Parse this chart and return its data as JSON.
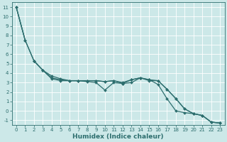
{
  "xlabel": "Humidex (Indice chaleur)",
  "bg_color": "#cce8e8",
  "grid_color": "#ffffff",
  "line_color": "#2d6e6e",
  "xlim": [
    -0.5,
    23.5
  ],
  "ylim": [
    -1.5,
    11.5
  ],
  "xticks": [
    0,
    1,
    2,
    3,
    4,
    5,
    6,
    7,
    8,
    9,
    10,
    11,
    12,
    13,
    14,
    15,
    16,
    17,
    18,
    19,
    20,
    21,
    22,
    23
  ],
  "yticks": [
    -1,
    0,
    1,
    2,
    3,
    4,
    5,
    6,
    7,
    8,
    9,
    10,
    11
  ],
  "series": [
    {
      "x": [
        0,
        1
      ],
      "y": [
        11.0,
        7.5
      ],
      "marker": false
    },
    {
      "x": [
        2,
        3,
        4,
        5,
        6,
        7,
        8,
        9,
        10,
        11,
        12,
        13,
        14,
        15,
        16,
        17,
        18,
        19,
        20,
        21,
        22,
        23
      ],
      "y": [
        5.3,
        4.3,
        3.5,
        3.3,
        3.2,
        3.2,
        3.2,
        3.2,
        3.1,
        3.2,
        3.0,
        3.3,
        3.5,
        3.3,
        3.2,
        2.3,
        1.3,
        0.2,
        -0.3,
        -0.5,
        -1.2,
        -1.3
      ],
      "marker": true
    },
    {
      "x": [
        0,
        1,
        2,
        3,
        4,
        5,
        6,
        7,
        8,
        9,
        10,
        11,
        12,
        13,
        14,
        15,
        16,
        17,
        18,
        19,
        20,
        21,
        22,
        23
      ],
      "y": [
        11.0,
        7.5,
        5.3,
        4.3,
        3.7,
        3.4,
        3.2,
        3.2,
        3.2,
        3.2,
        3.1,
        3.2,
        2.9,
        3.3,
        3.5,
        3.3,
        2.8,
        1.3,
        0.0,
        -0.2,
        -0.3,
        -0.5,
        -1.2,
        -1.3
      ],
      "marker": true
    },
    {
      "x": [
        0,
        1,
        2,
        3,
        4,
        5,
        6,
        7,
        8,
        9,
        10,
        11,
        12,
        13,
        14,
        15,
        16,
        17,
        18,
        19,
        20,
        21,
        22,
        23
      ],
      "y": [
        11.0,
        7.5,
        5.3,
        4.3,
        3.4,
        3.2,
        3.2,
        3.2,
        3.1,
        3.0,
        2.2,
        3.0,
        2.9,
        3.0,
        3.5,
        3.2,
        3.2,
        2.3,
        1.3,
        0.2,
        -0.3,
        -0.5,
        -1.2,
        -1.3
      ],
      "marker": true
    }
  ],
  "tick_fontsize": 5.0,
  "xlabel_fontsize": 6.5,
  "linewidth": 0.9,
  "markersize": 2.0
}
